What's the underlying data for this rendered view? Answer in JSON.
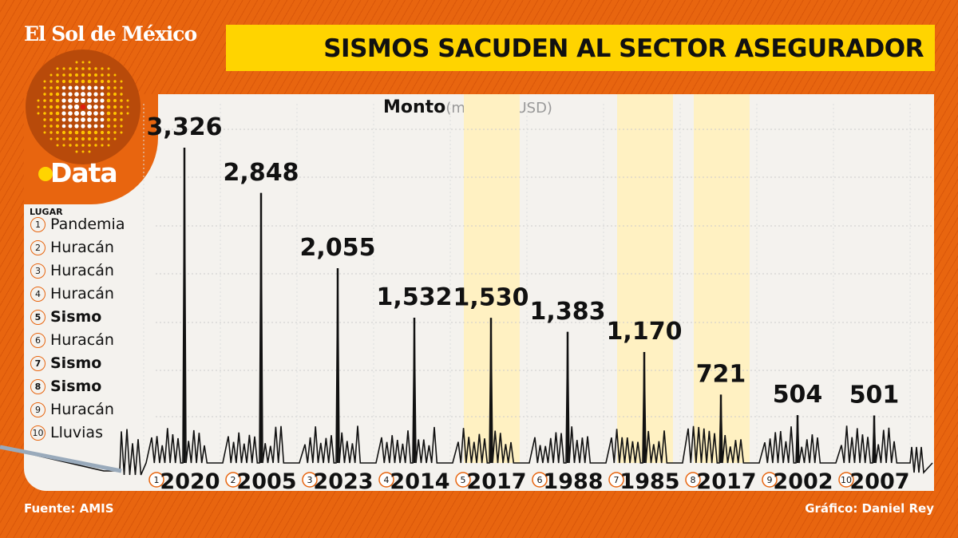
{
  "header": {
    "brand": "El Sol de México",
    "section": "Data",
    "title": "SISMOS SACUDEN AL SECTOR ASEGURADOR"
  },
  "legend": {
    "heading": "LUGAR",
    "items": [
      {
        "n": "1",
        "label": "Pandemia"
      },
      {
        "n": "2",
        "label": "Huracán"
      },
      {
        "n": "3",
        "label": "Huracán"
      },
      {
        "n": "4",
        "label": "Huracán"
      },
      {
        "n": "5",
        "label": "Sismo"
      },
      {
        "n": "6",
        "label": "Huracán"
      },
      {
        "n": "7",
        "label": "Sismo"
      },
      {
        "n": "8",
        "label": "Sismo"
      },
      {
        "n": "9",
        "label": "Huracán"
      },
      {
        "n": "10",
        "label": "Lluvias"
      }
    ]
  },
  "chart_data": {
    "type": "bar",
    "ylabel": "Monto",
    "yunit": "(millones USD)",
    "categories": [
      "2020",
      "2005",
      "2023",
      "2014",
      "2017",
      "1988",
      "1985",
      "2017",
      "2002",
      "2007"
    ],
    "ranks": [
      "1",
      "2",
      "3",
      "4",
      "5",
      "6",
      "7",
      "8",
      "9",
      "10"
    ],
    "values": [
      3326,
      2848,
      2055,
      1532,
      1530,
      1383,
      1170,
      721,
      504,
      501
    ],
    "labels": [
      "3,326",
      "2,848",
      "2,055",
      "1,532",
      "1,530",
      "1,383",
      "1,170",
      "721",
      "504",
      "501"
    ],
    "highlighted": [
      false,
      false,
      false,
      false,
      true,
      false,
      true,
      true,
      false,
      false
    ],
    "grid": true,
    "colors": {
      "line": "#111111",
      "highlight": "#fff1c2",
      "accent": "#e8650f"
    }
  },
  "footer": {
    "source": "Fuente: AMIS",
    "credit": "Gráfico: Daniel Rey"
  }
}
